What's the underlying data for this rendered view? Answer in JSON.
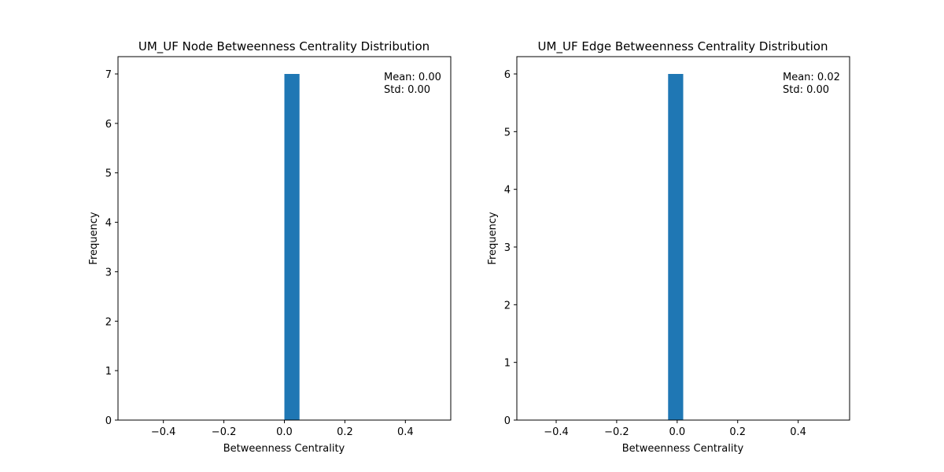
{
  "chart_data": [
    {
      "type": "bar",
      "title": "UM_UF Node Betweenness Centrality Distribution",
      "xlabel": "Betweenness Centrality",
      "ylabel": "Frequency",
      "xlim": [
        -0.55,
        0.55
      ],
      "ylim": [
        0,
        7.35
      ],
      "xticks": [
        -0.4,
        -0.2,
        0.0,
        0.2,
        0.4
      ],
      "xtick_labels": [
        "−0.4",
        "−0.2",
        "0.0",
        "0.2",
        "0.4"
      ],
      "yticks": [
        0,
        1,
        2,
        3,
        4,
        5,
        6,
        7
      ],
      "ytick_labels": [
        "0",
        "1",
        "2",
        "3",
        "4",
        "5",
        "6",
        "7"
      ],
      "bars": [
        {
          "x0": 0.0,
          "x1": 0.05,
          "value": 7
        }
      ],
      "annotation": [
        "Mean: 0.00",
        "Std: 0.00"
      ],
      "grid": false,
      "bar_color": "#1f77b4"
    },
    {
      "type": "bar",
      "title": "UM_UF Edge Betweenness Centrality Distribution",
      "xlabel": "Betweenness Centrality",
      "ylabel": "Frequency",
      "xlim": [
        -0.53,
        0.57
      ],
      "ylim": [
        0,
        6.3
      ],
      "xticks": [
        -0.4,
        -0.2,
        0.0,
        0.2,
        0.4
      ],
      "xtick_labels": [
        "−0.4",
        "−0.2",
        "0.0",
        "0.2",
        "0.4"
      ],
      "yticks": [
        0,
        1,
        2,
        3,
        4,
        5,
        6
      ],
      "ytick_labels": [
        "0",
        "1",
        "2",
        "3",
        "4",
        "5",
        "6"
      ],
      "bars": [
        {
          "x0": -0.03,
          "x1": 0.02,
          "value": 6
        }
      ],
      "annotation": [
        "Mean: 0.02",
        "Std: 0.00"
      ],
      "grid": false,
      "bar_color": "#1f77b4"
    }
  ]
}
